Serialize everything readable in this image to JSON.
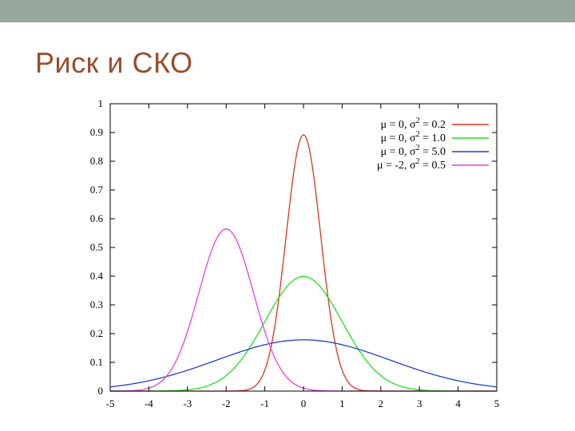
{
  "slide": {
    "title": "Риск и СКО",
    "colors": {
      "top_bar": "#97a69b",
      "title": "#9a4d2c"
    }
  },
  "chart_data": {
    "type": "line",
    "title": "",
    "xlabel": "",
    "ylabel": "",
    "xlim": [
      -5,
      5
    ],
    "ylim": [
      0,
      1
    ],
    "x_ticks": [
      "-5",
      "-4",
      "-3",
      "-2",
      "-1",
      "0",
      "1",
      "2",
      "3",
      "4",
      "5"
    ],
    "y_ticks": [
      "0",
      "0.1",
      "0.2",
      "0.3",
      "0.4",
      "0.5",
      "0.6",
      "0.7",
      "0.8",
      "0.9",
      "1"
    ],
    "grid": false,
    "legend_position": "top-right",
    "series": [
      {
        "name": "μ = 0, σ2 = 0.2",
        "mu": 0,
        "variance": 0.2,
        "color": "#e0301e",
        "legend": {
          "pre": "μ =  0, σ",
          "post": " = 0.2"
        }
      },
      {
        "name": "μ = 0, σ2 = 1.0",
        "mu": 0,
        "variance": 1.0,
        "color": "#22e01e",
        "legend": {
          "pre": "μ =  0, σ",
          "post": " = 1.0"
        }
      },
      {
        "name": "μ = 0, σ2 = 5.0",
        "mu": 0,
        "variance": 5.0,
        "color": "#1f3fcf",
        "legend": {
          "pre": "μ =  0, σ",
          "post": " = 5.0"
        }
      },
      {
        "name": "μ = -2, σ2 = 0.5",
        "mu": -2,
        "variance": 0.5,
        "color": "#ee3ce8",
        "legend": {
          "pre": "μ = -2, σ",
          "post": " = 0.5"
        }
      }
    ]
  }
}
